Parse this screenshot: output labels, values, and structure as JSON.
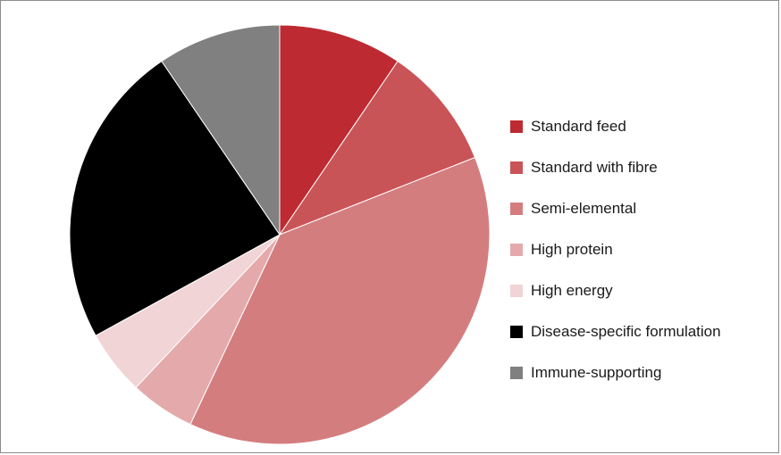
{
  "chart_data": {
    "type": "pie",
    "title": "",
    "legend_position": "right",
    "start_angle_deg": 0,
    "direction": "clockwise",
    "slices": [
      {
        "label": "Standard feed",
        "value": 9.5,
        "color": "#be2a32"
      },
      {
        "label": "Standard with fibre",
        "value": 9.5,
        "color": "#c95457"
      },
      {
        "label": "Semi-elemental",
        "value": 38,
        "color": "#d47d7f"
      },
      {
        "label": "High protein",
        "value": 5,
        "color": "#e4aaab"
      },
      {
        "label": "High energy",
        "value": 5,
        "color": "#f1d4d5"
      },
      {
        "label": "Disease-specific formulation",
        "value": 23.5,
        "color": "#000000"
      },
      {
        "label": "Immune-supporting",
        "value": 9.5,
        "color": "#808080"
      }
    ]
  }
}
